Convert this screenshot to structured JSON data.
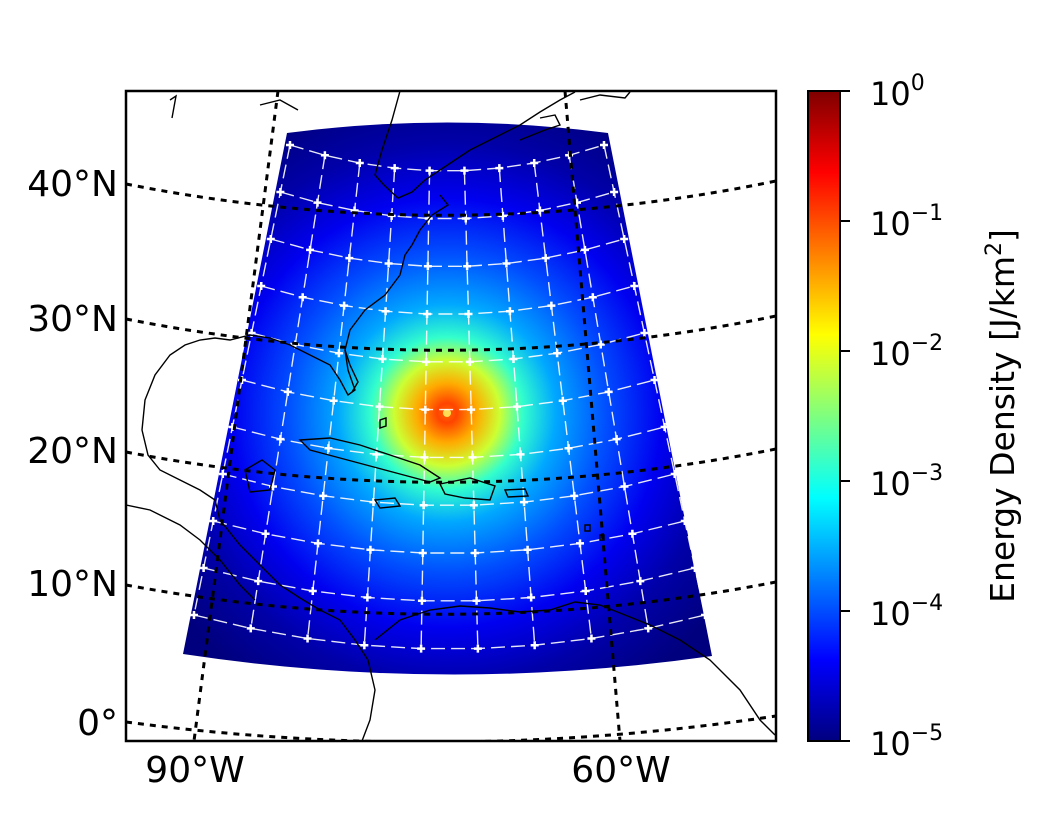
{
  "map": {
    "lat_labels": [
      "40°N",
      "30°N",
      "20°N",
      "10°N",
      "0°"
    ],
    "lon_labels": [
      "90°W",
      "60°W"
    ],
    "colormap": "jet"
  },
  "colorbar": {
    "title": "Energy Density [J/km",
    "title_sup": "2",
    "title_end": "]",
    "scale": "log",
    "range": [
      1e-05,
      1
    ],
    "ticks": [
      {
        "base": "10",
        "exp": "0"
      },
      {
        "base": "10",
        "exp": "−1"
      },
      {
        "base": "10",
        "exp": "−2"
      },
      {
        "base": "10",
        "exp": "−3"
      },
      {
        "base": "10",
        "exp": "−4"
      },
      {
        "base": "10",
        "exp": "−5"
      }
    ],
    "colors": [
      "#00007f",
      "#0000ff",
      "#007fff",
      "#00ffff",
      "#7fff7f",
      "#ffff00",
      "#ff7f00",
      "#ff0000",
      "#7f0000"
    ]
  }
}
